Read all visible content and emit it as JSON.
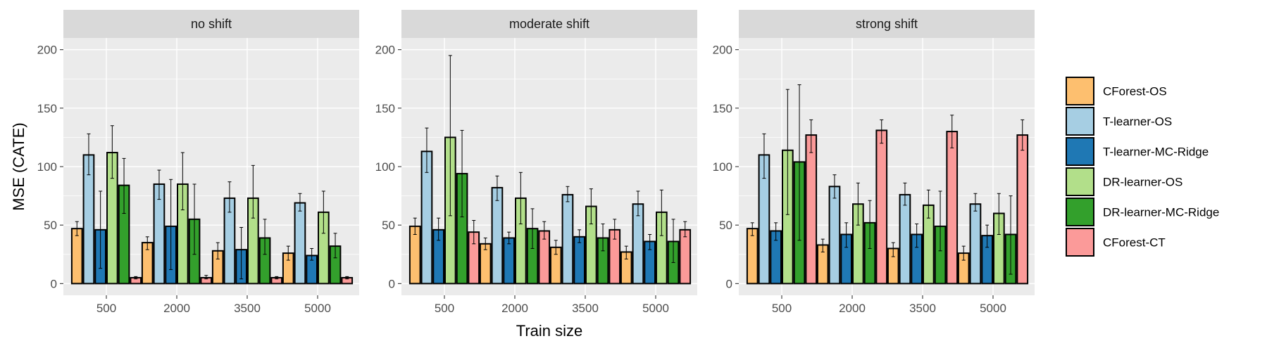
{
  "chart_data": {
    "type": "bar",
    "xlabel": "Train size",
    "ylabel": "MSE (CATE)",
    "ylim": [
      -10,
      210
    ],
    "yticks": [
      0,
      50,
      100,
      150,
      200
    ],
    "categories": [
      "500",
      "2000",
      "3500",
      "5000"
    ],
    "legend_position": "right",
    "series_names": [
      "CForest-OS",
      "T-learner-OS",
      "T-learner-MC-Ridge",
      "DR-learner-OS",
      "DR-learner-MC-Ridge",
      "CForest-CT"
    ],
    "colors": [
      "#fdbf6f",
      "#a6cee3",
      "#1f78b4",
      "#b2df8a",
      "#33a02c",
      "#fb9a99"
    ],
    "panels": [
      {
        "title": "no shift",
        "values": [
          [
            47,
            110,
            46,
            112,
            84,
            5
          ],
          [
            35,
            85,
            49,
            85,
            55,
            5
          ],
          [
            28,
            73,
            29,
            73,
            39,
            5
          ],
          [
            26,
            69,
            24,
            61,
            32,
            5
          ]
        ],
        "err_low": [
          [
            41,
            93,
            13,
            90,
            60,
            4
          ],
          [
            29,
            72,
            12,
            63,
            25,
            4
          ],
          [
            21,
            61,
            4,
            56,
            25,
            4
          ],
          [
            20,
            62,
            20,
            43,
            22,
            4
          ]
        ],
        "err_high": [
          [
            53,
            128,
            79,
            135,
            107,
            6
          ],
          [
            40,
            97,
            89,
            112,
            85,
            7
          ],
          [
            35,
            87,
            48,
            101,
            55,
            6
          ],
          [
            32,
            77,
            30,
            79,
            43,
            6
          ]
        ]
      },
      {
        "title": "moderate shift",
        "values": [
          [
            49,
            113,
            46,
            125,
            94,
            44
          ],
          [
            34,
            82,
            39,
            73,
            47,
            45
          ],
          [
            31,
            76,
            40,
            66,
            39,
            46
          ],
          [
            27,
            68,
            36,
            61,
            36,
            46
          ]
        ],
        "err_low": [
          [
            42,
            95,
            37,
            58,
            57,
            34
          ],
          [
            29,
            71,
            34,
            51,
            30,
            38
          ],
          [
            25,
            70,
            35,
            51,
            28,
            38
          ],
          [
            21,
            58,
            29,
            41,
            18,
            40
          ]
        ],
        "err_high": [
          [
            56,
            133,
            56,
            195,
            131,
            54
          ],
          [
            39,
            92,
            44,
            95,
            64,
            53
          ],
          [
            37,
            83,
            46,
            81,
            51,
            55
          ],
          [
            32,
            79,
            42,
            80,
            55,
            53
          ]
        ]
      },
      {
        "title": "strong shift",
        "values": [
          [
            47,
            110,
            45,
            114,
            104,
            127
          ],
          [
            33,
            83,
            42,
            68,
            52,
            131
          ],
          [
            30,
            76,
            42,
            67,
            49,
            130
          ],
          [
            26,
            68,
            41,
            60,
            42,
            127
          ]
        ],
        "err_low": [
          [
            41,
            90,
            37,
            59,
            37,
            112
          ],
          [
            27,
            73,
            31,
            50,
            30,
            120
          ],
          [
            23,
            67,
            31,
            56,
            28,
            116
          ],
          [
            20,
            62,
            31,
            42,
            8,
            114
          ]
        ],
        "err_high": [
          [
            52,
            128,
            52,
            166,
            170,
            140
          ],
          [
            38,
            93,
            52,
            86,
            71,
            140
          ],
          [
            35,
            86,
            51,
            80,
            79,
            144
          ],
          [
            32,
            77,
            50,
            77,
            75,
            140
          ]
        ]
      }
    ]
  }
}
